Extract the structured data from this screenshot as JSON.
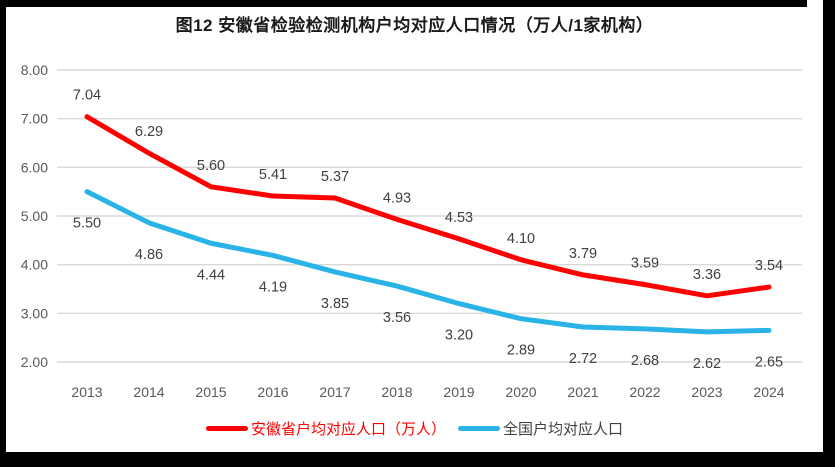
{
  "colors": {
    "accent_red": "#FF0000",
    "accent_blue": "#29B3E6",
    "grid": "#D9D9D9",
    "axis_text": "#595959",
    "data_label_text": "#404040",
    "frame": "#000000",
    "background": "#FFFFFF"
  },
  "chart_data": {
    "type": "line",
    "title": "图12 安徽省检验检测机构户均对应人口情况（万人/1家机构）",
    "categories": [
      "2013",
      "2014",
      "2015",
      "2016",
      "2017",
      "2018",
      "2019",
      "2020",
      "2021",
      "2022",
      "2023",
      "2024"
    ],
    "series": [
      {
        "name": "安徽省户均对应人口（万人）",
        "color": "#FF0000",
        "values": [
          7.04,
          6.29,
          5.6,
          5.41,
          5.37,
          4.93,
          4.53,
          4.1,
          3.79,
          3.59,
          3.36,
          3.54
        ],
        "labels": [
          "7.04",
          "6.29",
          "5.60",
          "5.41",
          "5.37",
          "4.93",
          "4.53",
          "4.10",
          "3.79",
          "3.59",
          "3.36",
          "3.54"
        ],
        "label_placement": "above"
      },
      {
        "name": "全国户均对应人口",
        "color": "#29B3E6",
        "values": [
          5.5,
          4.86,
          4.44,
          4.19,
          3.85,
          3.56,
          3.2,
          2.89,
          2.72,
          2.68,
          2.62,
          2.65
        ],
        "labels": [
          "5.50",
          "4.86",
          "4.44",
          "4.19",
          "3.85",
          "3.56",
          "3.20",
          "2.89",
          "2.72",
          "2.68",
          "2.62",
          "2.65"
        ],
        "label_placement": "below"
      }
    ],
    "xlabel": "",
    "ylabel": "",
    "ylim": [
      2,
      8
    ],
    "yticks": [
      "2.00",
      "3.00",
      "4.00",
      "5.00",
      "6.00",
      "7.00",
      "8.00"
    ],
    "grid": true,
    "legend_position": "bottom"
  }
}
